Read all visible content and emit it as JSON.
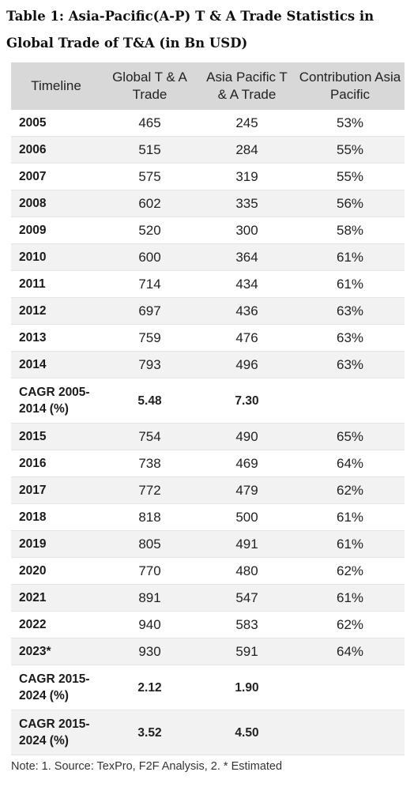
{
  "title": "Table 1:  Asia-Pacific(A-P) T & A Trade Statistics in Global Trade of T&A (in Bn USD)",
  "headers": [
    "Timeline",
    "Global T & A Trade",
    "Asia Pacific T & A Trade",
    "Contribution Asia Pacific"
  ],
  "rows": [
    {
      "timeline": "2005",
      "global": "465",
      "ap": "245",
      "contrib": "53%",
      "kind": "year"
    },
    {
      "timeline": "2006",
      "global": "515",
      "ap": "284",
      "contrib": "55%",
      "kind": "year"
    },
    {
      "timeline": "2007",
      "global": "575",
      "ap": "319",
      "contrib": "55%",
      "kind": "year"
    },
    {
      "timeline": "2008",
      "global": "602",
      "ap": "335",
      "contrib": "56%",
      "kind": "year"
    },
    {
      "timeline": "2009",
      "global": "520",
      "ap": "300",
      "contrib": "58%",
      "kind": "year"
    },
    {
      "timeline": "2010",
      "global": "600",
      "ap": "364",
      "contrib": "61%",
      "kind": "year"
    },
    {
      "timeline": "2011",
      "global": "714",
      "ap": "434",
      "contrib": "61%",
      "kind": "year"
    },
    {
      "timeline": "2012",
      "global": "697",
      "ap": "436",
      "contrib": "63%",
      "kind": "year"
    },
    {
      "timeline": "2013",
      "global": "759",
      "ap": "476",
      "contrib": "63%",
      "kind": "year"
    },
    {
      "timeline": "2014",
      "global": "793",
      "ap": "496",
      "contrib": "63%",
      "kind": "year"
    },
    {
      "timeline": "CAGR 2005-2014 (%)",
      "global": "5.48",
      "ap": "7.30",
      "contrib": "",
      "kind": "cagr"
    },
    {
      "timeline": "2015",
      "global": "754",
      "ap": "490",
      "contrib": "65%",
      "kind": "year"
    },
    {
      "timeline": "2016",
      "global": "738",
      "ap": "469",
      "contrib": "64%",
      "kind": "year"
    },
    {
      "timeline": "2017",
      "global": "772",
      "ap": "479",
      "contrib": "62%",
      "kind": "year"
    },
    {
      "timeline": "2018",
      "global": "818",
      "ap": "500",
      "contrib": "61%",
      "kind": "year"
    },
    {
      "timeline": "2019",
      "global": "805",
      "ap": "491",
      "contrib": "61%",
      "kind": "year"
    },
    {
      "timeline": "2020",
      "global": "770",
      "ap": "480",
      "contrib": "62%",
      "kind": "year"
    },
    {
      "timeline": "2021",
      "global": "891",
      "ap": "547",
      "contrib": "61%",
      "kind": "year"
    },
    {
      "timeline": "2022",
      "global": "940",
      "ap": "583",
      "contrib": "62%",
      "kind": "year"
    },
    {
      "timeline": "2023*",
      "global": "930",
      "ap": "591",
      "contrib": "64%",
      "kind": "year"
    },
    {
      "timeline": "CAGR 2015-2024 (%)",
      "global": "2.12",
      "ap": "1.90",
      "contrib": "",
      "kind": "cagr"
    },
    {
      "timeline": "CAGR 2015-2024 (%)",
      "global": "3.52",
      "ap": "4.50",
      "contrib": "",
      "kind": "cagr"
    }
  ],
  "note": "Note: 1. Source: TexPro, F2F Analysis, 2. * Estimated"
}
